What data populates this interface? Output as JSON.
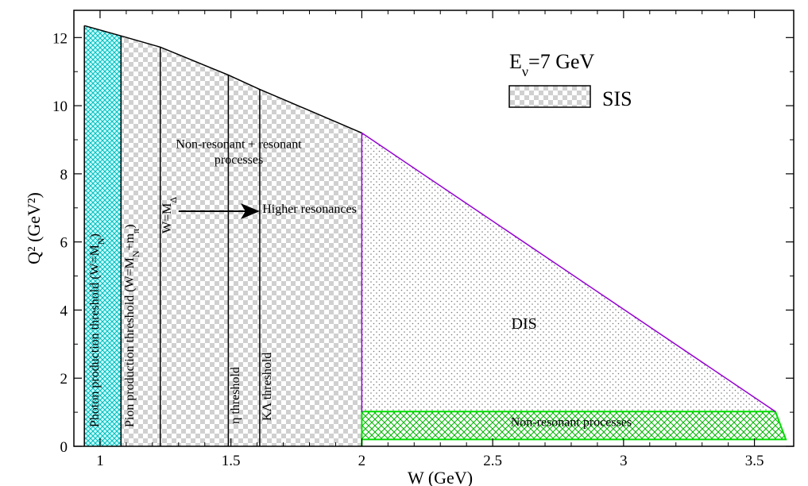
{
  "chart_data": {
    "type": "area",
    "xlabel": "W (GeV)",
    "ylabel": "Q² (GeV²)",
    "xlim": [
      0.9,
      3.65
    ],
    "ylim": [
      0,
      12.8
    ],
    "x_ticks": [
      1,
      1.5,
      2,
      2.5,
      3,
      3.5
    ],
    "x_tick_labels": [
      "1",
      "1.5",
      "2",
      "2.5",
      "3",
      "3.5"
    ],
    "y_ticks": [
      0,
      2,
      4,
      6,
      8,
      10,
      12
    ],
    "y_tick_labels": [
      "0",
      "2",
      "4",
      "6",
      "8",
      "10",
      "12"
    ],
    "upper_boundary": [
      {
        "x": 0.94,
        "y": 12.35
      },
      {
        "x": 1.08,
        "y": 12.05
      },
      {
        "x": 1.23,
        "y": 11.72
      },
      {
        "x": 1.49,
        "y": 10.9
      },
      {
        "x": 1.61,
        "y": 10.48
      },
      {
        "x": 2.0,
        "y": 9.2
      },
      {
        "x": 3.58,
        "y": 1.02
      }
    ],
    "thresholds": [
      {
        "x": 0.94,
        "label": "Photon production threshold (W=M_N)"
      },
      {
        "x": 1.08,
        "label": "Pion production threshold (W=M_N+m_π)"
      },
      {
        "x": 1.23,
        "label": "W=M_Δ"
      },
      {
        "x": 1.49,
        "label": "η threshold"
      },
      {
        "x": 1.61,
        "label": "KΛ threshold"
      }
    ],
    "regions": [
      {
        "name": "Photon production region",
        "color": "#00cccc",
        "x_range": [
          0.94,
          1.08
        ]
      },
      {
        "name": "SIS",
        "x_range": [
          1.08,
          2.0
        ],
        "y_min": 0
      },
      {
        "name": "DIS",
        "x_range": [
          2.0,
          3.58
        ],
        "y_min": 1.0,
        "boundary_color": "#9400d3"
      },
      {
        "name": "Non-resonant processes",
        "color": "#00cc00",
        "x_range": [
          2.0,
          3.62
        ],
        "y_range": [
          0.2,
          1.02
        ]
      }
    ],
    "annotations": [
      {
        "text": "Non-resonant + resonant",
        "x": 1.53,
        "y": 8.75
      },
      {
        "text": "processes",
        "x": 1.53,
        "y": 8.3
      },
      {
        "text": "Higher resonances",
        "x": 1.62,
        "y": 6.85
      },
      {
        "text": "DIS",
        "x": 2.62,
        "y": 3.45
      },
      {
        "text": "Non-resonant processes",
        "x": 2.8,
        "y": 0.6
      }
    ],
    "arrow": {
      "from": [
        1.3,
        6.9
      ],
      "to": [
        1.61,
        6.9
      ]
    },
    "legend": {
      "placement": "top-right",
      "title_base": "E",
      "title_sub": "ν",
      "title_rest": "=7 GeV",
      "entries": [
        "SIS"
      ]
    }
  }
}
